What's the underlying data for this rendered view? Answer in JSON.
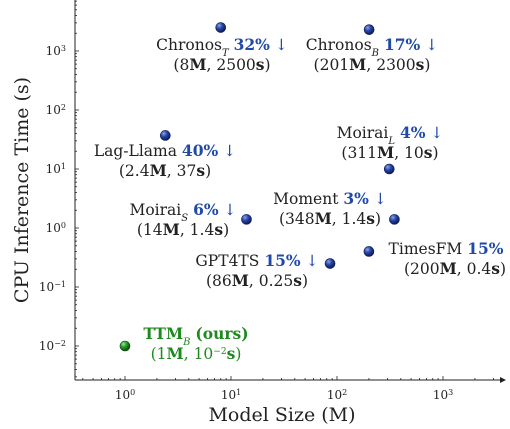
{
  "chart_data": {
    "type": "scatter",
    "xlabel": "Model Size (M)",
    "ylabel": "CPU Inference Time (s)",
    "x_scale": "log",
    "y_scale": "log",
    "xlim": [
      0.35,
      3500
    ],
    "ylim": [
      0.0023,
      10000
    ],
    "x_ticks": [
      {
        "value": 1,
        "base": "10",
        "exp": "0"
      },
      {
        "value": 10,
        "base": "10",
        "exp": "1"
      },
      {
        "value": 100,
        "base": "10",
        "exp": "2"
      },
      {
        "value": 1000,
        "base": "10",
        "exp": "3"
      }
    ],
    "y_ticks": [
      {
        "value": 0.01,
        "base": "10",
        "exp": "−2"
      },
      {
        "value": 0.1,
        "base": "10",
        "exp": "−1"
      },
      {
        "value": 1,
        "base": "10",
        "exp": "0"
      },
      {
        "value": 10,
        "base": "10",
        "exp": "1"
      },
      {
        "value": 100,
        "base": "10",
        "exp": "2"
      },
      {
        "value": 1000,
        "base": "10",
        "exp": "3"
      }
    ],
    "grid": false,
    "colors": {
      "blue": "#1f3f99",
      "green": "#1e8a1e",
      "pct": "#1f4aa8"
    },
    "points": [
      {
        "name": "Chronos",
        "sub": "T",
        "pct": "32%",
        "arrow": "↓",
        "size": "8",
        "size_unit": "M",
        "time": "2500",
        "time_unit": "s",
        "x": 8,
        "y": 2500,
        "color": "blue"
      },
      {
        "name": "Chronos",
        "sub": "B",
        "pct": "17%",
        "arrow": "↓",
        "size": "201",
        "size_unit": "M",
        "time": "2300",
        "time_unit": "s",
        "x": 201,
        "y": 2300,
        "color": "blue"
      },
      {
        "name": "Lag-Llama",
        "sub": "",
        "pct": "40%",
        "arrow": "↓",
        "size": "2.4",
        "size_unit": "M",
        "time": "37",
        "time_unit": "s",
        "x": 2.4,
        "y": 37,
        "color": "blue"
      },
      {
        "name": "Moirai",
        "sub": "L",
        "pct": "4%",
        "arrow": "↓",
        "size": "311",
        "size_unit": "M",
        "time": "10",
        "time_unit": "s",
        "x": 311,
        "y": 10,
        "color": "blue"
      },
      {
        "name": "Moirai",
        "sub": "S",
        "pct": "6%",
        "arrow": "↓",
        "size": "14",
        "size_unit": "M",
        "time": "1.4",
        "time_unit": "s",
        "x": 14,
        "y": 1.4,
        "color": "blue"
      },
      {
        "name": "Moment",
        "sub": "",
        "pct": "3%",
        "arrow": "↓",
        "size": "348",
        "size_unit": "M",
        "time": "1.4",
        "time_unit": "s",
        "x": 348,
        "y": 1.4,
        "color": "blue"
      },
      {
        "name": "GPT4TS",
        "sub": "",
        "pct": "15%",
        "arrow": "↓",
        "size": "86",
        "size_unit": "M",
        "time": "0.25",
        "time_unit": "s",
        "x": 86,
        "y": 0.25,
        "color": "blue"
      },
      {
        "name": "TimesFM",
        "sub": "",
        "pct": "15%",
        "arrow": "↓",
        "size": "200",
        "size_unit": "M",
        "time": "0.4",
        "time_unit": "s",
        "x": 200,
        "y": 0.4,
        "color": "blue"
      },
      {
        "name": "TTM",
        "sub": "B",
        "name_suffix": "(ours)",
        "pct": "",
        "arrow": "",
        "size": "1",
        "size_unit": "M",
        "time_base": "10",
        "time_exp": "−2",
        "time_unit": "s",
        "x": 1,
        "y": 0.01,
        "color": "green"
      }
    ]
  }
}
